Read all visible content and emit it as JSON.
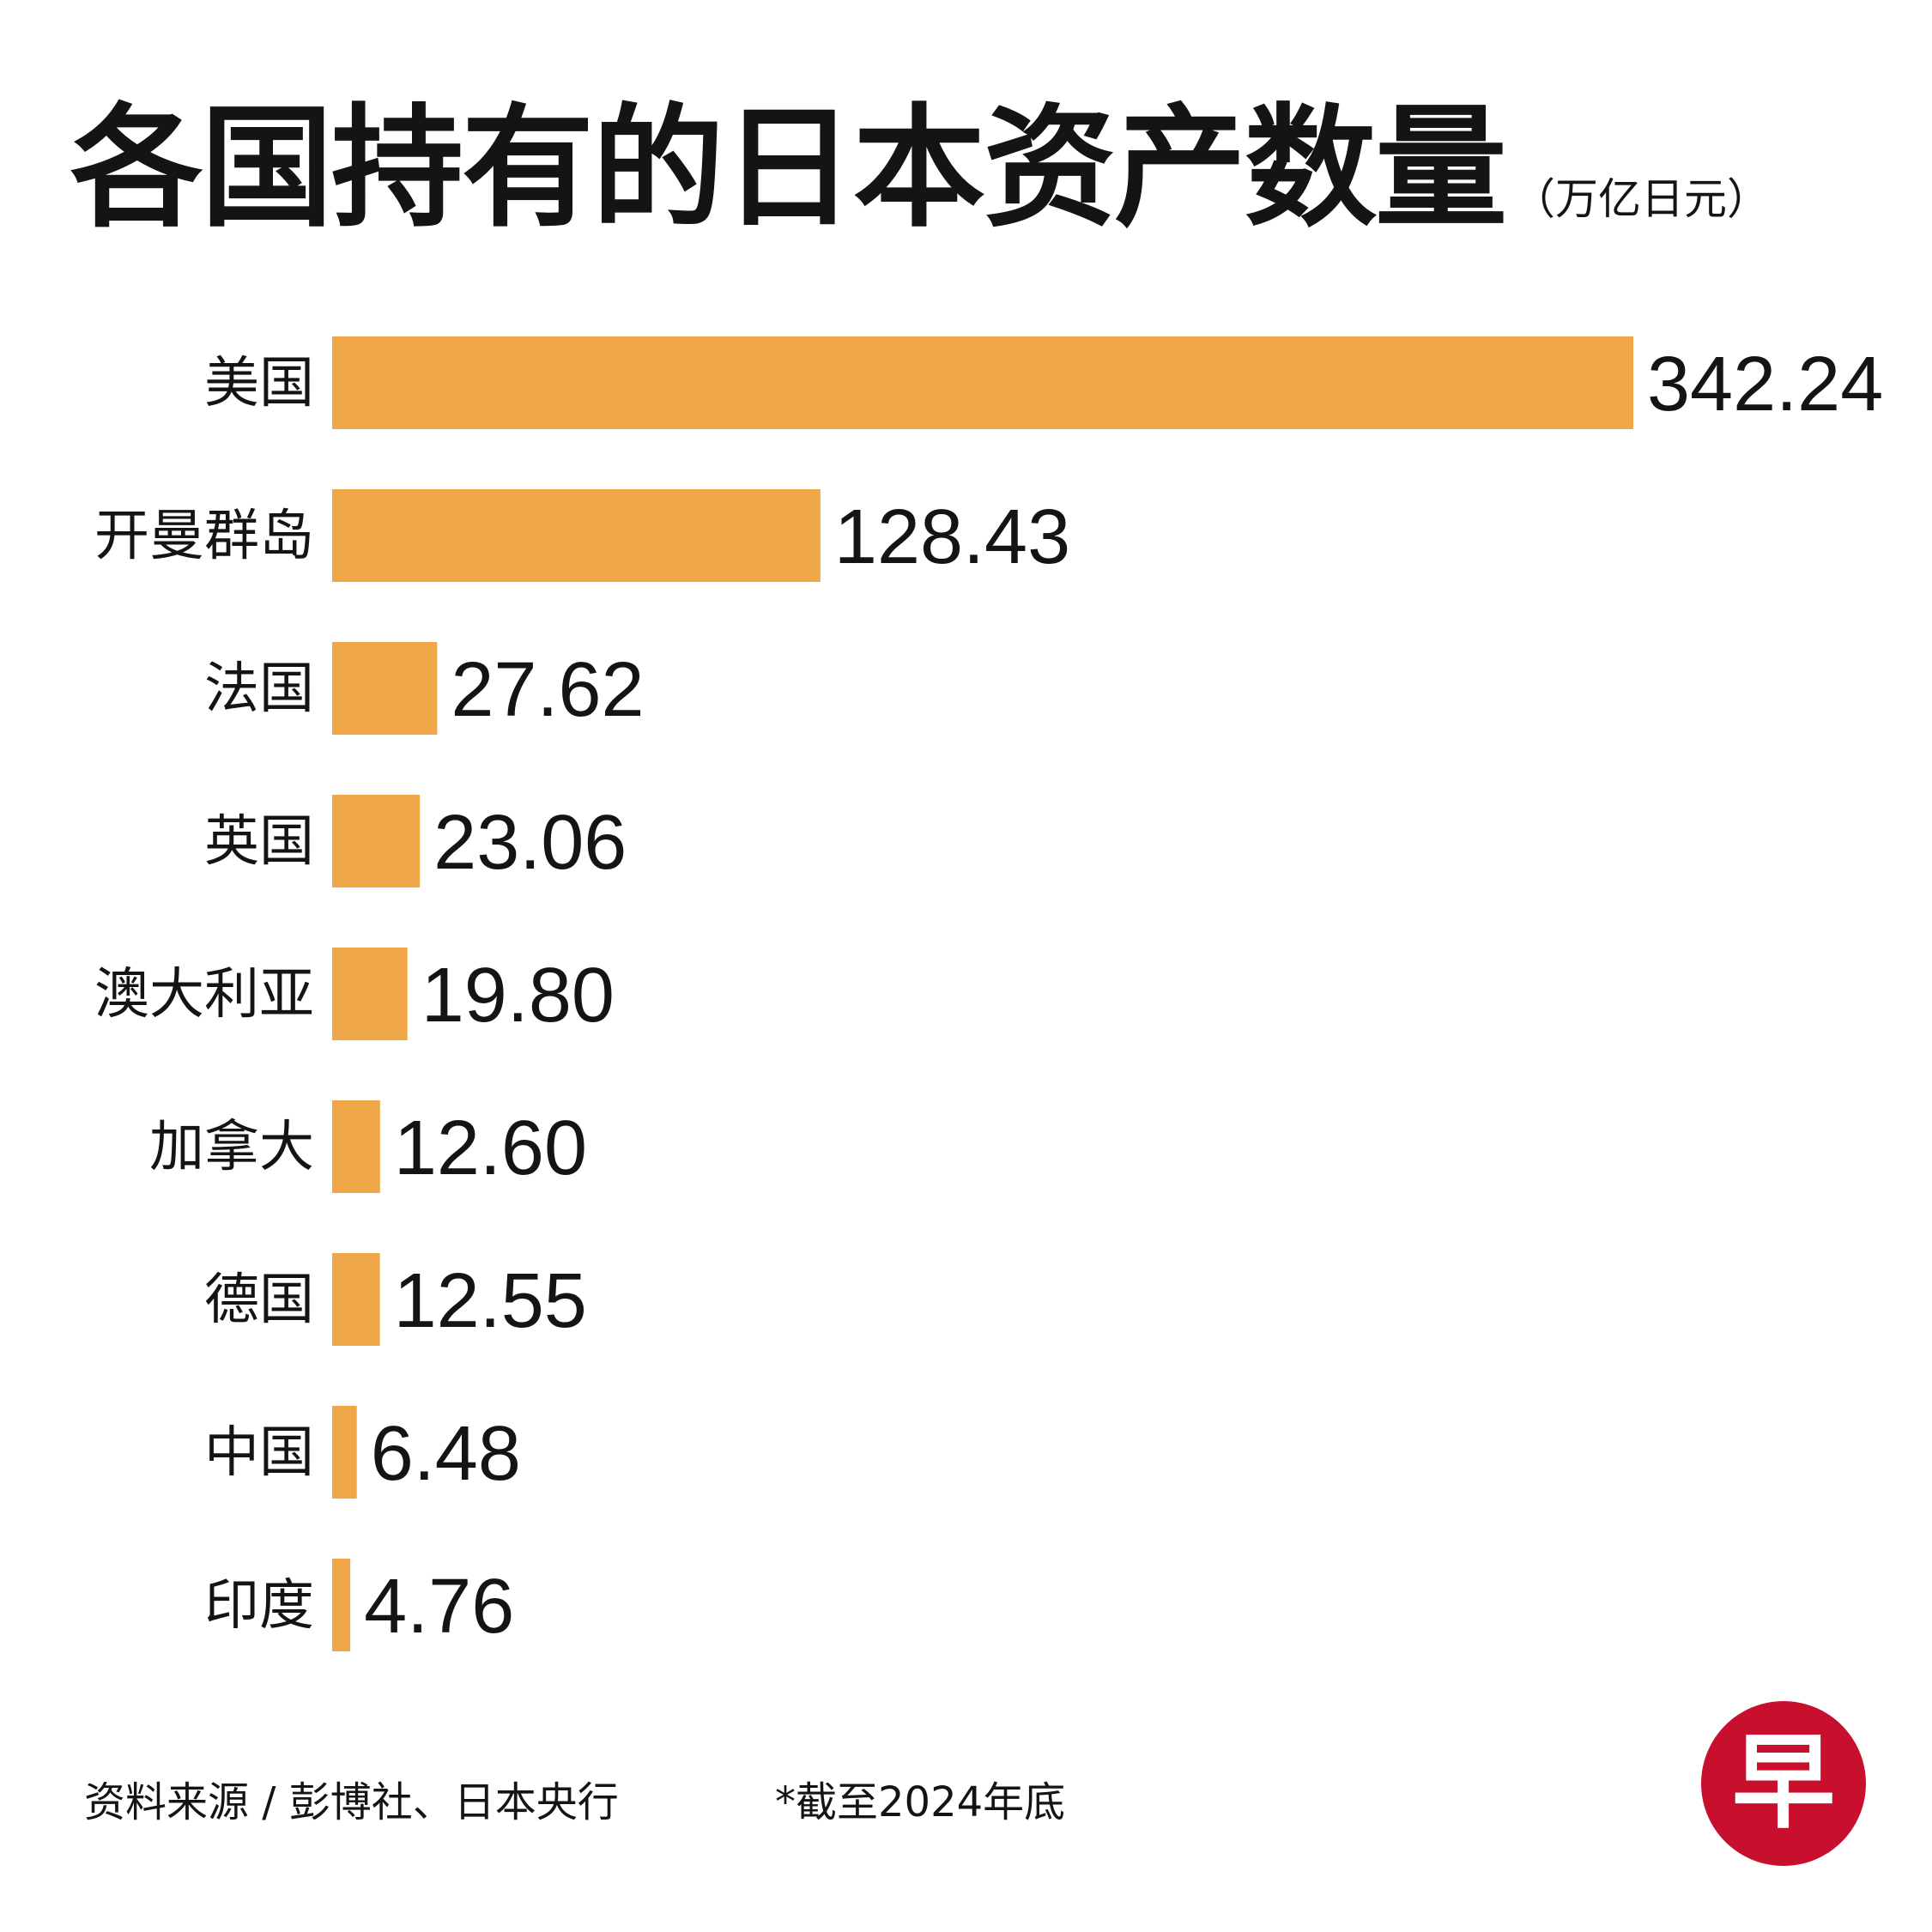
{
  "chart_data": {
    "type": "bar",
    "orientation": "horizontal",
    "title": "各国持有的日本资产数量",
    "unit": "（万亿日元）",
    "categories": [
      "美国",
      "开曼群岛",
      "法国",
      "英国",
      "澳大利亚",
      "加拿大",
      "德国",
      "中国",
      "印度"
    ],
    "values": [
      342.24,
      128.43,
      27.62,
      23.06,
      19.8,
      12.6,
      12.55,
      6.48,
      4.76
    ],
    "value_labels": [
      "342.24",
      "128.43",
      "27.62",
      "23.06",
      "19.80",
      "12.60",
      "12.55",
      "6.48",
      "4.76"
    ],
    "xlim": [
      0,
      342.24
    ],
    "grid": false,
    "legend": "none",
    "bar_color": "#F0A74A"
  },
  "footer": {
    "source": "资料来源 / 彭博社、日本央行",
    "note": "*截至2024年底"
  },
  "logo": {
    "glyph": "早",
    "color": "#C8102E"
  }
}
